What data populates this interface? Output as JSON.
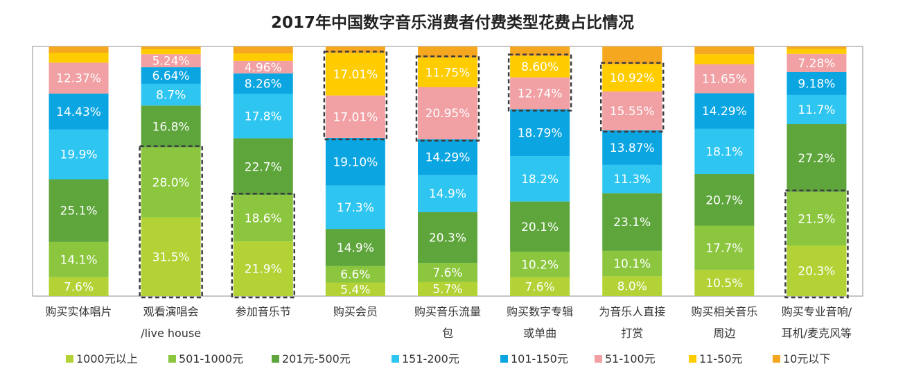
{
  "chart_data": {
    "type": "bar",
    "stacked": true,
    "normalized": true,
    "title": "2017年中国数字音乐消费者付费类型花费占比情况",
    "categories": [
      [
        "购买实体唱片"
      ],
      [
        "观看演唱会",
        "/live house"
      ],
      [
        "参加音乐节"
      ],
      [
        "购买会员"
      ],
      [
        "购买音乐流量",
        "包"
      ],
      [
        "购买数字专辑",
        "或单曲"
      ],
      [
        "为音乐人直接",
        "打赏"
      ],
      [
        "购买相关音乐",
        "周边"
      ],
      [
        "购买专业音响/",
        "耳机/麦克风等"
      ]
    ],
    "ylim": [
      0,
      100
    ],
    "legend_position": "bottom",
    "series": [
      {
        "name": "1000元以上",
        "color": "#b2d235",
        "values": [
          7.6,
          31.5,
          21.9,
          5.4,
          5.7,
          7.6,
          8.0,
          10.5,
          20.3
        ]
      },
      {
        "name": "501-1000元",
        "color": "#8cc63f",
        "values": [
          14.1,
          28.0,
          18.6,
          6.6,
          7.6,
          10.2,
          10.1,
          17.7,
          21.5
        ]
      },
      {
        "name": "201元-500元",
        "color": "#5ea53b",
        "values": [
          25.1,
          16.8,
          22.7,
          14.9,
          20.3,
          20.1,
          23.1,
          20.7,
          27.2
        ]
      },
      {
        "name": "151-200元",
        "color": "#2ec6f1",
        "values": [
          19.9,
          8.7,
          17.8,
          17.3,
          14.9,
          18.2,
          11.3,
          18.1,
          11.7
        ]
      },
      {
        "name": "101-150元",
        "color": "#0ba6e2",
        "values": [
          14.43,
          6.64,
          8.26,
          19.1,
          14.29,
          18.79,
          13.87,
          14.29,
          9.18
        ]
      },
      {
        "name": "51-100元",
        "color": "#f1a0a4",
        "values": [
          12.37,
          5.24,
          4.96,
          17.01,
          20.95,
          12.74,
          15.55,
          11.65,
          7.28
        ]
      },
      {
        "name": "11-50元",
        "color": "#ffcc00",
        "values": [
          4.0,
          2.0,
          3.0,
          17.01,
          11.75,
          8.6,
          10.92,
          4.0,
          2.0
        ]
      },
      {
        "name": "10元以下",
        "color": "#f5a71f",
        "values": [
          2.5,
          1.1,
          2.8,
          2.6,
          4.5,
          3.8,
          7.1,
          3.1,
          1.0
        ]
      }
    ],
    "data_labels": [
      [
        "7.6%",
        "14.1%",
        "25.1%",
        "19.9%",
        "14.43%",
        "12.37%",
        "",
        ""
      ],
      [
        "31.5%",
        "28.0%",
        "16.8%",
        "8.7%",
        "6.64%",
        "5.24%",
        "",
        ""
      ],
      [
        "21.9%",
        "18.6%",
        "22.7%",
        "17.8%",
        "8.26%",
        "4.96%",
        "",
        ""
      ],
      [
        "5.4%",
        "6.6%",
        "14.9%",
        "17.3%",
        "19.10%",
        "17.01%",
        "17.01%",
        ""
      ],
      [
        "5.7%",
        "7.6%",
        "20.3%",
        "14.9%",
        "14.29%",
        "20.95%",
        "11.75%",
        ""
      ],
      [
        "7.6%",
        "10.2%",
        "20.1%",
        "18.2%",
        "18.79%",
        "12.74%",
        "8.60%",
        ""
      ],
      [
        "8.0%",
        "10.1%",
        "23.1%",
        "11.3%",
        "13.87%",
        "15.55%",
        "10.92%",
        ""
      ],
      [
        "10.5%",
        "17.7%",
        "20.7%",
        "18.1%",
        "14.29%",
        "11.65%",
        "",
        ""
      ],
      [
        "20.3%",
        "21.5%",
        "27.2%",
        "11.7%",
        "9.18%",
        "7.28%",
        "",
        ""
      ]
    ],
    "highlights": [
      {
        "category": 1,
        "series": [
          0,
          1
        ]
      },
      {
        "category": 2,
        "series": [
          0,
          1
        ]
      },
      {
        "category": 3,
        "series": [
          5,
          6
        ]
      },
      {
        "category": 4,
        "series": [
          5,
          6
        ]
      },
      {
        "category": 5,
        "series": [
          5,
          6
        ]
      },
      {
        "category": 6,
        "series": [
          5,
          6
        ]
      },
      {
        "category": 8,
        "series": [
          0,
          1
        ]
      }
    ]
  }
}
